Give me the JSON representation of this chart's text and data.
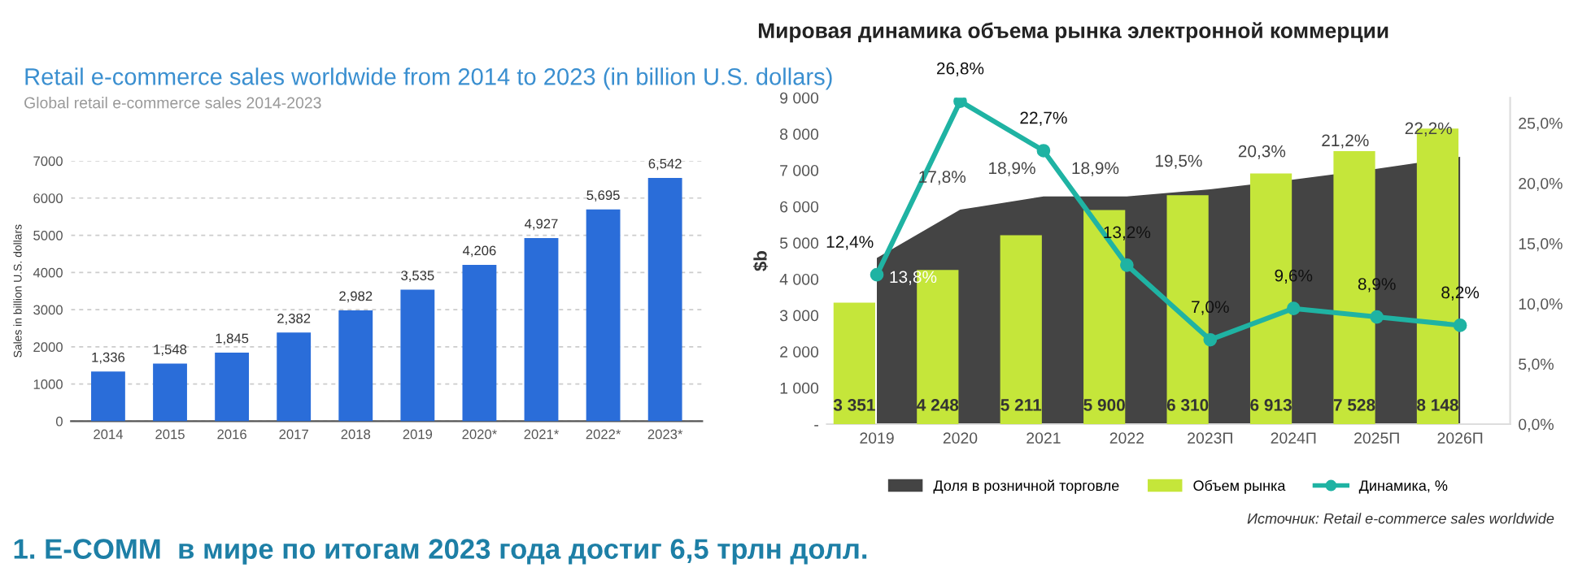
{
  "chart_data": [
    {
      "type": "bar",
      "title": "Retail e-commerce sales worldwide from 2014 to 2023 (in billion U.S. dollars)",
      "subtitle": "Global retail e-commerce sales 2014-2023",
      "ylabel": "Sales in billion U.S. dollars",
      "categories": [
        "2014",
        "2015",
        "2016",
        "2017",
        "2018",
        "2019",
        "2020*",
        "2021*",
        "2022*",
        "2023*"
      ],
      "series": [
        {
          "color": "#2a6dd9",
          "values": [
            1336,
            1548,
            1845,
            2382,
            2982,
            3535,
            4206,
            4927,
            5695,
            6542
          ],
          "value_labels": [
            "1,336",
            "1,548",
            "1,845",
            "2,382",
            "2,982",
            "3,535",
            "4,206",
            "4,927",
            "5,695",
            "6,542"
          ]
        }
      ],
      "ylim": [
        0,
        7000
      ],
      "yticks": [
        0,
        1000,
        2000,
        3000,
        4000,
        5000,
        6000,
        7000
      ],
      "grid": "y",
      "annotations": [
        "1. E-COMM  в мире по итогам 2023 года достиг 6,5 трлн долл."
      ]
    },
    {
      "type": "bar",
      "title": "Мировая динамика объема рынка электронной коммерции",
      "ylabel": "$b",
      "categories": [
        "2019",
        "2020",
        "2021",
        "2022",
        "2023П",
        "2024П",
        "2025П",
        "2026П"
      ],
      "series": [
        {
          "type": "area",
          "axis": "y2",
          "name": "Доля в розничной торговле",
          "color": "#444444",
          "values": [
            13.8,
            17.8,
            18.9,
            18.9,
            19.5,
            20.3,
            21.2,
            22.2
          ],
          "value_labels": [
            "13,8%",
            "17,8%",
            "18,9%",
            "18,9%",
            "19,5%",
            "20,3%",
            "21,2%",
            "22,2%"
          ]
        },
        {
          "name": "Объем рынка",
          "color": "#c5e63a",
          "values": [
            3351,
            4248,
            5211,
            5900,
            6310,
            6913,
            7528,
            8148
          ],
          "value_labels": [
            "3 351",
            "4 248",
            "5 211",
            "5 900",
            "6 310",
            "6 913",
            "7 528",
            "8 148"
          ]
        },
        {
          "type": "line",
          "axis": "y2",
          "name": "Динамика, %",
          "color": "#1fb3a3",
          "marker": "circle",
          "values": [
            12.4,
            26.8,
            22.7,
            13.2,
            7.0,
            9.6,
            8.9,
            8.2
          ],
          "value_labels": [
            "12,4%",
            "26,8%",
            "22,7%",
            "13,2%",
            "7,0%",
            "9,6%",
            "8,9%",
            "8,2%"
          ]
        }
      ],
      "ylim": [
        0,
        9000
      ],
      "yticks": [
        {
          "value": 0,
          "label": "-"
        },
        {
          "value": 1000,
          "label": "1 000"
        },
        {
          "value": 2000,
          "label": "2 000"
        },
        {
          "value": 3000,
          "label": "3 000"
        },
        {
          "value": 4000,
          "label": "4 000"
        },
        {
          "value": 5000,
          "label": "5 000"
        },
        {
          "value": 6000,
          "label": "6 000"
        },
        {
          "value": 7000,
          "label": "7 000"
        },
        {
          "value": 8000,
          "label": "8 000"
        },
        {
          "value": 9000,
          "label": "9 000"
        }
      ],
      "y2lim": [
        0,
        27.1
      ],
      "y2ticks": [
        {
          "value": 0,
          "label": "0,0%"
        },
        {
          "value": 5,
          "label": "5,0%"
        },
        {
          "value": 10,
          "label": "10,0%"
        },
        {
          "value": 15,
          "label": "15,0%"
        },
        {
          "value": 20,
          "label": "20,0%"
        },
        {
          "value": 25,
          "label": "25,0%"
        }
      ],
      "legend": "bottom",
      "annotations": [
        "Источник: Retail e-commerce sales worldwide"
      ]
    }
  ]
}
